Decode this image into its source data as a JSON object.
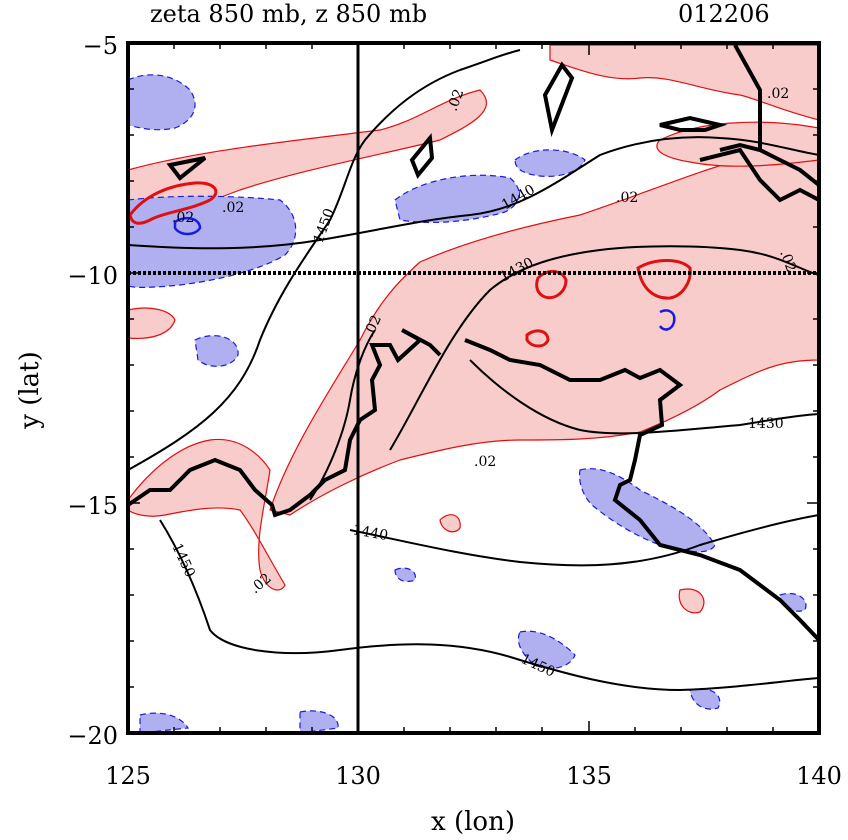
{
  "header": {
    "title": "zeta 850 mb, z 850 mb",
    "timestamp": "012206"
  },
  "axes": {
    "xlabel": "x (lon)",
    "ylabel": "y (lat)",
    "x_ticks": [
      "125",
      "130",
      "135",
      "140"
    ],
    "y_ticks": [
      "−5",
      "−10",
      "−15",
      "−20"
    ]
  },
  "map": {
    "x_range": [
      125,
      140
    ],
    "y_range": [
      -20,
      -5
    ],
    "crosshair": {
      "lon": 130,
      "lat": -10
    },
    "colors": {
      "positive_fill": "#f9cccc",
      "positive_line": "#e01010",
      "negative_fill": "#b0b0f0",
      "negative_line": "#1a1ae0",
      "height_line": "#000000"
    },
    "contour_labels": [
      ".02",
      ".02",
      ".02",
      ".02",
      ".02",
      ".02",
      ".02",
      ".02",
      "1450",
      "1440",
      "1430",
      "1430",
      "1440",
      "1450",
      "1450"
    ]
  }
}
